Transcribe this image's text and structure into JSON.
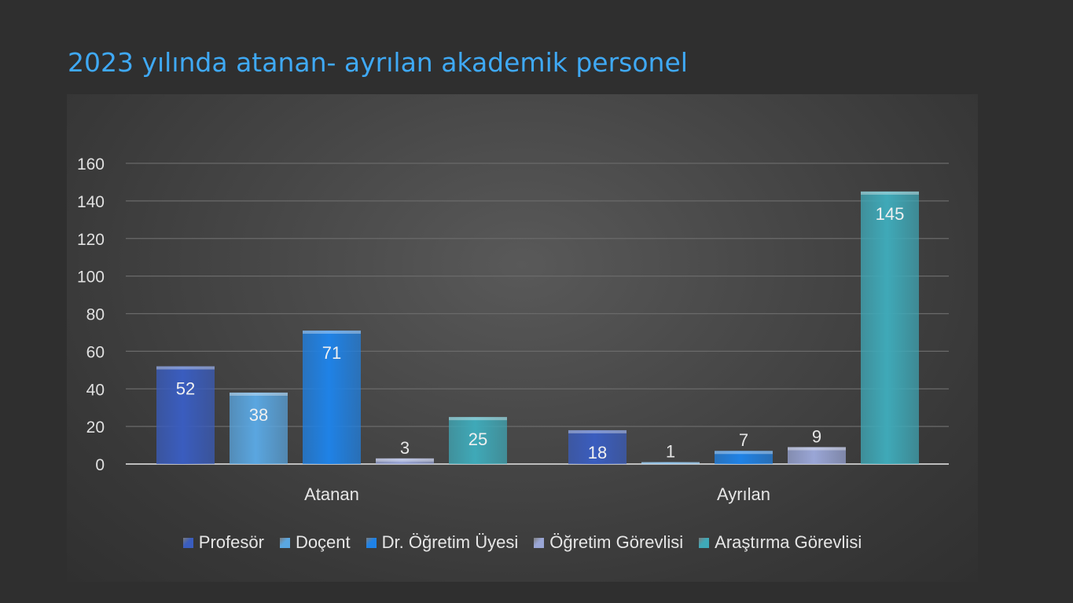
{
  "title": "2023 yılında atanan- ayrılan akademik personel",
  "chart_data": {
    "type": "bar",
    "categories": [
      "Atanan",
      "Ayrılan"
    ],
    "series": [
      {
        "name": "Profesör",
        "values": [
          52,
          18
        ],
        "color": "#3a5dbf"
      },
      {
        "name": "Doçent",
        "values": [
          38,
          1
        ],
        "color": "#5aa6e0"
      },
      {
        "name": "Dr. Öğretim Üyesi",
        "values": [
          71,
          7
        ],
        "color": "#1f82e6"
      },
      {
        "name": "Öğretim Görevlisi",
        "values": [
          3,
          9
        ],
        "color": "#9aa6d6"
      },
      {
        "name": "Araştırma Görevlisi",
        "values": [
          25,
          145
        ],
        "color": "#3fa9b8"
      }
    ],
    "ylim": [
      0,
      160
    ],
    "yticks": [
      0,
      20,
      40,
      60,
      80,
      100,
      120,
      140,
      160
    ],
    "grid": true,
    "legend_position": "bottom"
  }
}
